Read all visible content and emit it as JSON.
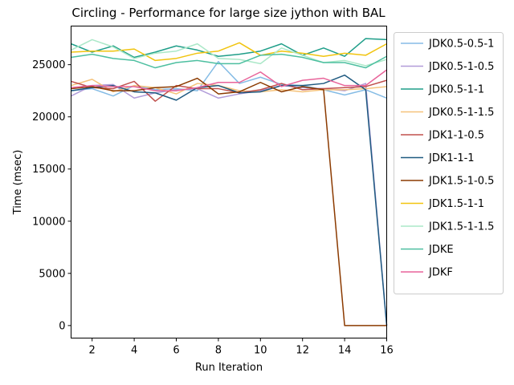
{
  "chart_data": {
    "type": "line",
    "title": "Circling - Performance for large size jython with BAL",
    "xlabel": "Run Iteration",
    "ylabel": "Time (msec)",
    "xlim": [
      1,
      16
    ],
    "ylim": [
      -1200,
      28700
    ],
    "xticks": [
      2,
      4,
      6,
      8,
      10,
      12,
      14,
      16
    ],
    "yticks": [
      0,
      5000,
      10000,
      15000,
      20000,
      25000
    ],
    "grid": false,
    "legend_position": "outside-right",
    "x": [
      1,
      2,
      3,
      4,
      5,
      6,
      7,
      8,
      9,
      10,
      11,
      12,
      13,
      14,
      15,
      16
    ],
    "series": [
      {
        "name": "JDK0.5-0.5-1",
        "color": "#85bce5",
        "values": [
          22500,
          22700,
          22000,
          23000,
          22600,
          22700,
          22500,
          25300,
          23200,
          23800,
          23100,
          23000,
          22600,
          22100,
          22600,
          21800
        ]
      },
      {
        "name": "JDK0.5-1-0.5",
        "color": "#b19cd9",
        "values": [
          22000,
          23000,
          23100,
          21800,
          22300,
          22600,
          22700,
          21800,
          22200,
          22500,
          23000,
          22800,
          22700,
          22500,
          23200,
          0
        ]
      },
      {
        "name": "JDK0.5-1-1",
        "color": "#1f9e89",
        "values": [
          27000,
          26200,
          26800,
          25700,
          26200,
          26800,
          26400,
          25800,
          26000,
          26300,
          27000,
          25900,
          26600,
          25800,
          27500,
          27400
        ]
      },
      {
        "name": "JDK0.5-1-1.5",
        "color": "#f5c27a",
        "values": [
          23000,
          23600,
          22400,
          23000,
          22800,
          22200,
          23200,
          23000,
          22500,
          22400,
          22600,
          22400,
          22600,
          22600,
          22700,
          22900
        ]
      },
      {
        "name": "JDK1-1-0.5",
        "color": "#c0504d",
        "values": [
          23400,
          22800,
          22700,
          23400,
          21500,
          23000,
          22700,
          22700,
          22300,
          22600,
          23200,
          22600,
          22700,
          22800,
          22900,
          23500
        ]
      },
      {
        "name": "JDK1-1-1",
        "color": "#1f5a80",
        "values": [
          22500,
          22800,
          23000,
          22400,
          22300,
          21600,
          22800,
          23000,
          22300,
          22400,
          23000,
          23000,
          23200,
          24000,
          22600,
          0
        ]
      },
      {
        "name": "JDK1.5-1-0.5",
        "color": "#8b3a00",
        "values": [
          22700,
          22900,
          22500,
          22500,
          22800,
          22900,
          23700,
          22200,
          22400,
          23300,
          22400,
          22900,
          22600,
          0,
          0,
          0
        ]
      },
      {
        "name": "JDK1.5-1-1",
        "color": "#f1c40f",
        "values": [
          26200,
          26300,
          26300,
          26500,
          25400,
          25600,
          26100,
          26300,
          27100,
          25900,
          26300,
          26100,
          25800,
          26100,
          25900,
          27000
        ]
      },
      {
        "name": "JDK1.5-1-1.5",
        "color": "#abe8c8",
        "values": [
          26400,
          27400,
          26700,
          25600,
          26100,
          26300,
          27000,
          25600,
          25500,
          25100,
          26600,
          25900,
          25200,
          25400,
          24900,
          25500
        ]
      },
      {
        "name": "JDKE",
        "color": "#4dbfa0",
        "values": [
          25700,
          26000,
          25600,
          25400,
          24700,
          25200,
          25400,
          25100,
          25100,
          25900,
          26000,
          25700,
          25200,
          25200,
          24700,
          25800
        ]
      },
      {
        "name": "JDKF",
        "color": "#e8649a",
        "values": [
          22800,
          23000,
          22900,
          22900,
          22500,
          22500,
          22800,
          23300,
          23300,
          24300,
          22900,
          23500,
          23700,
          23000,
          23000,
          24500
        ]
      }
    ]
  }
}
